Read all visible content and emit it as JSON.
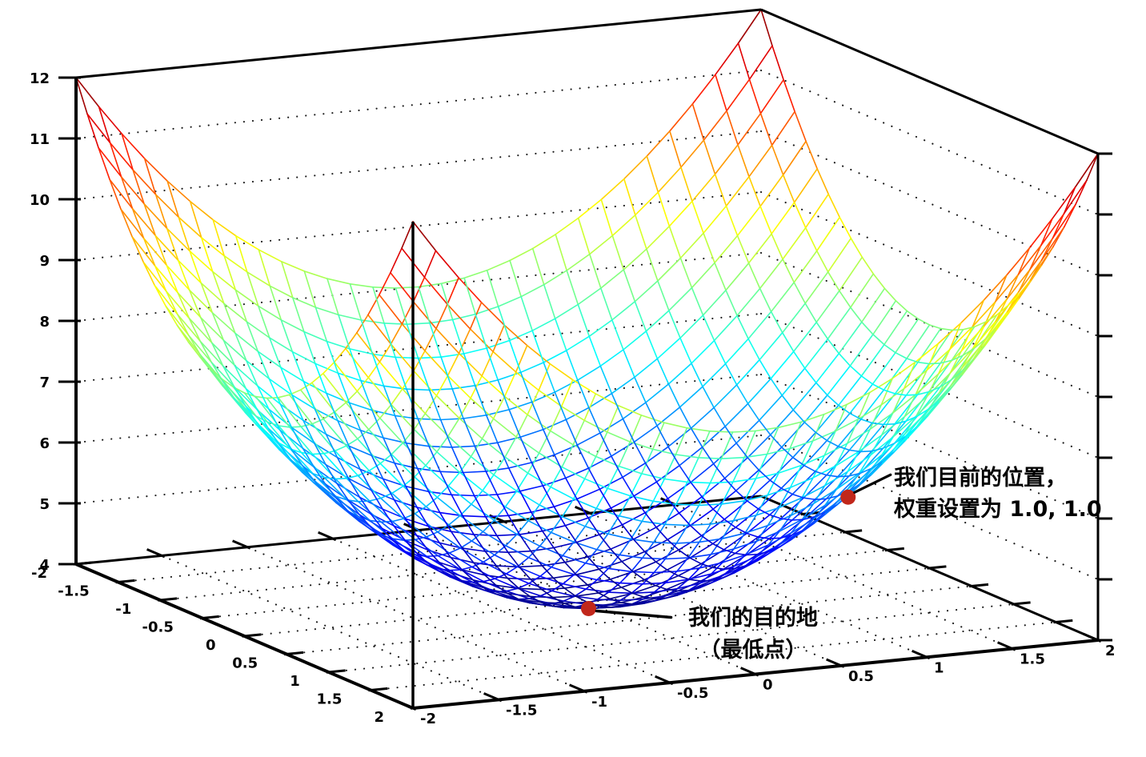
{
  "page": {
    "background": "#ffffff"
  },
  "chart_data": {
    "type": "surface3d_wireframe",
    "title": "",
    "surface": {
      "equation": "z = x^2 + y^2 + 4",
      "x_range": [
        -2,
        2
      ],
      "y_range": [
        -2,
        2
      ],
      "z_range": [
        4,
        12
      ],
      "mesh_divisions": 30,
      "colormap": "jet"
    },
    "axes": {
      "x": {
        "tick_values": [
          -2,
          -1.5,
          -1,
          -0.5,
          0,
          0.5,
          1,
          1.5,
          2
        ],
        "tick_labels": [
          "-2",
          "-1.5",
          "-1",
          "-0.5",
          "0",
          "0.5",
          "1",
          "1.5",
          "2"
        ]
      },
      "y": {
        "tick_values": [
          -2,
          -1.5,
          -1,
          -0.5,
          0,
          0.5,
          1,
          1.5,
          2
        ],
        "tick_labels": [
          "-2",
          "-1.5",
          "-1",
          "-0.5",
          "0",
          "0.5",
          "1",
          "1.5",
          "2"
        ]
      },
      "z": {
        "tick_values": [
          4,
          5,
          6,
          7,
          8,
          9,
          10,
          11,
          12
        ],
        "tick_labels": [
          "4",
          "5",
          "6",
          "7",
          "8",
          "9",
          "10",
          "11",
          "12"
        ]
      }
    },
    "grid": {
      "style": "dotted",
      "wall_z_lines": [
        5,
        6,
        7,
        8,
        9,
        10,
        11
      ],
      "floor_lines": [
        -1.5,
        -1,
        -0.5,
        0,
        0.5,
        1,
        1.5
      ]
    },
    "annotations": [
      {
        "id": "current-position",
        "lines": [
          "我们目前的位置，",
          "权重设置为 1.0, 1.0"
        ],
        "point": {
          "x": 1.0,
          "y": 1.0,
          "z": 6.0
        },
        "dot_color": "#c1271b"
      },
      {
        "id": "destination",
        "lines": [
          "我们的目的地",
          "（最低点）"
        ],
        "point": {
          "x": 0.0,
          "y": 0.0,
          "z": 4.0
        },
        "dot_color": "#c1271b"
      }
    ],
    "colors": {
      "border": "#000000",
      "grid_dots": "#1a1a1a",
      "annotation_text": "#000000"
    }
  }
}
